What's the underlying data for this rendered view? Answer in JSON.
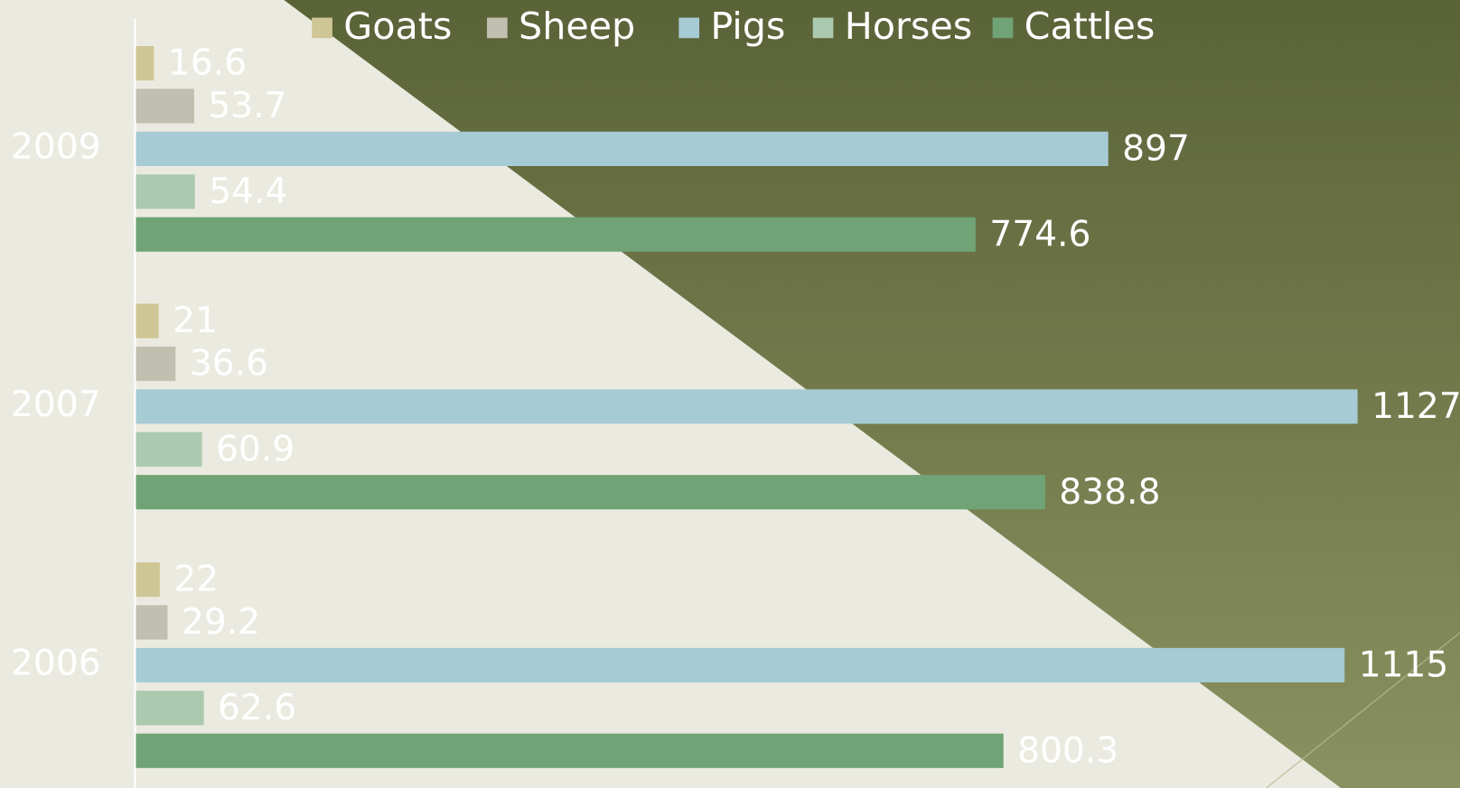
{
  "chart_data": {
    "type": "bar",
    "orientation": "horizontal",
    "categories": [
      "2009",
      "2007",
      "2006"
    ],
    "series": [
      {
        "name": "Goats",
        "color": "#cfc695",
        "values": [
          16.6,
          21,
          22
        ]
      },
      {
        "name": "Sheep",
        "color": "#c0bfb0",
        "values": [
          53.7,
          36.6,
          29.2
        ]
      },
      {
        "name": "Pigs",
        "color": "#a6cbd4",
        "values": [
          897,
          1127,
          1115
        ]
      },
      {
        "name": "Horses",
        "color": "#abc9ae",
        "values": [
          54.4,
          60.9,
          62.6
        ]
      },
      {
        "name": "Cattles",
        "color": "#70a376",
        "values": [
          774.6,
          838.8,
          800.3
        ]
      }
    ],
    "legend": "top",
    "data_labels": true
  }
}
